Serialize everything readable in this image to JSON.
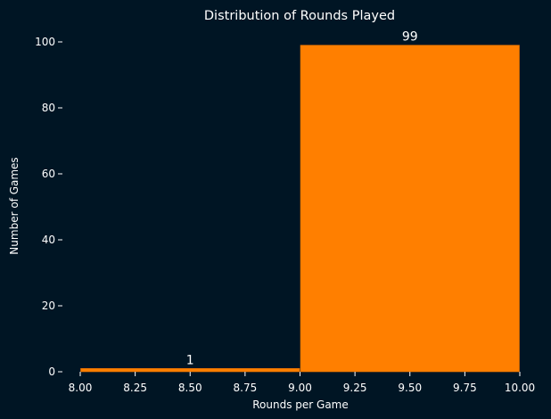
{
  "chart_data": {
    "type": "bar",
    "title": "Distribution of Rounds Played",
    "xlabel": "Rounds per Game",
    "ylabel": "Number of Games",
    "bins": [
      {
        "x0": 8.0,
        "x1": 9.0,
        "value": 1,
        "label": "1"
      },
      {
        "x0": 9.0,
        "x1": 10.0,
        "value": 99,
        "label": "99"
      }
    ],
    "xlim": [
      8.0,
      10.0
    ],
    "ylim": [
      0,
      104
    ],
    "x_ticks": [
      "8.00",
      "8.25",
      "8.50",
      "8.75",
      "9.00",
      "9.25",
      "9.50",
      "9.75",
      "10.00"
    ],
    "y_ticks": [
      "0",
      "20",
      "40",
      "60",
      "80",
      "100"
    ],
    "grid": false,
    "colors": {
      "background": "#001524",
      "bar": "#ff7f00",
      "text": "#ffffff"
    }
  }
}
